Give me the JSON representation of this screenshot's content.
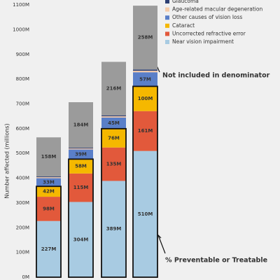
{
  "chart_data": {
    "type": "stacked-bar",
    "y_label": "Number affected (millions)",
    "ylim": [
      0,
      1120
    ],
    "yticks": [
      {
        "value": 0,
        "label": "0M"
      },
      {
        "value": 100,
        "label": "100M"
      },
      {
        "value": 200,
        "label": "200M"
      },
      {
        "value": 300,
        "label": "300M"
      },
      {
        "value": 400,
        "label": "400M"
      },
      {
        "value": 500,
        "label": "500M"
      },
      {
        "value": 600,
        "label": "600M"
      },
      {
        "value": 700,
        "label": "700M"
      },
      {
        "value": 800,
        "label": "800M"
      },
      {
        "value": 900,
        "label": "900M"
      },
      {
        "value": 1000,
        "label": "1000M"
      },
      {
        "value": 1100,
        "label": "1100M"
      }
    ],
    "series": [
      {
        "name": "Near vision impairment",
        "color": "#a8cbe2",
        "values": [
          227,
          304,
          389,
          510
        ],
        "value_labels": [
          "227M",
          "304M",
          "389M",
          "510M"
        ]
      },
      {
        "name": "Uncorrected refractive error",
        "color": "#e2593b",
        "values": [
          98,
          115,
          135,
          161
        ],
        "value_labels": [
          "98M",
          "115M",
          "135M",
          "161M"
        ]
      },
      {
        "name": "Cataract",
        "color": "#f5b800",
        "values": [
          42,
          58,
          76,
          100
        ],
        "value_labels": [
          "42M",
          "58M",
          "76M",
          "100M"
        ]
      },
      {
        "name": "Other causes of vision loss",
        "color": "#5a7fc8",
        "values": [
          33,
          39,
          45,
          57
        ],
        "value_labels": [
          "33M",
          "39M",
          "45M",
          "57M"
        ]
      },
      {
        "name": "Age-related macular degeneration",
        "color": "#f6cba8",
        "values": [
          4,
          4,
          5,
          6
        ]
      },
      {
        "name": "Glaucoma",
        "color": "#2d3f73",
        "values": [
          3,
          3,
          4,
          5
        ]
      },
      {
        "color": "#9b9b9b",
        "values": [
          158,
          184,
          216,
          258
        ],
        "value_labels": [
          "158M",
          "184M",
          "216M",
          "258M"
        ]
      }
    ],
    "annotations": [
      "Not included in denominator",
      "% Preventable or Treatable"
    ]
  }
}
